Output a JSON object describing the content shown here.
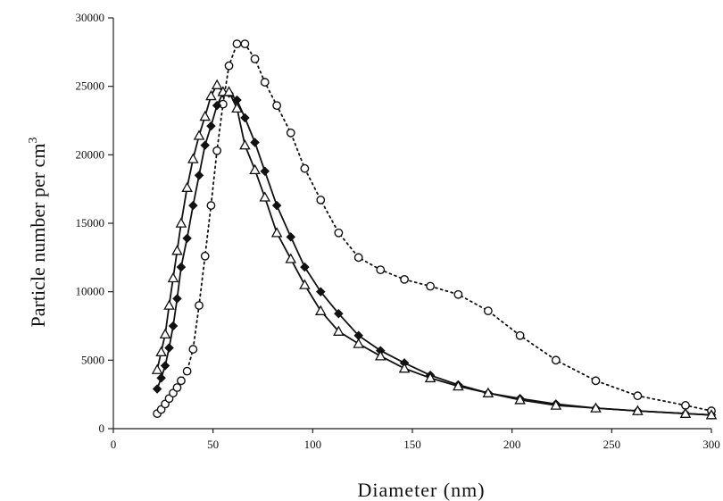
{
  "chart_data": {
    "type": "line",
    "title": "",
    "xlabel": "Diameter (nm)",
    "ylabel": "Particle number per cm",
    "ylabel_superscript": "3",
    "xlim": [
      0,
      300
    ],
    "ylim": [
      0,
      30000
    ],
    "xticks": [
      0,
      50,
      100,
      150,
      200,
      250,
      300
    ],
    "yticks": [
      0,
      5000,
      10000,
      15000,
      20000,
      25000,
      30000
    ],
    "xtick_labels": [
      "0",
      "50",
      "100",
      "150",
      "200",
      "250",
      "300"
    ],
    "ytick_labels": [
      "0",
      "5000",
      "10000",
      "15000",
      "20000",
      "25000",
      "30000"
    ],
    "grid": false,
    "legend": "none",
    "series": [
      {
        "marker": "open-circle",
        "line_style": "dotted",
        "color": "#111111",
        "x": [
          22,
          24,
          26,
          28,
          30,
          32,
          34,
          37,
          40,
          43,
          46,
          49,
          52,
          55,
          58,
          62,
          66,
          71,
          76,
          82,
          89,
          96,
          104,
          113,
          123,
          134,
          146,
          159,
          173,
          188,
          204,
          222,
          242,
          263,
          287,
          300
        ],
        "y": [
          1100,
          1400,
          1800,
          2200,
          2600,
          3000,
          3500,
          4200,
          5800,
          9000,
          12600,
          16300,
          20300,
          23700,
          26500,
          28100,
          28100,
          27000,
          25300,
          23600,
          21600,
          19000,
          16700,
          14300,
          12500,
          11600,
          10900,
          10400,
          9800,
          8600,
          6800,
          5000,
          3500,
          2400,
          1700,
          1300
        ]
      },
      {
        "marker": "filled-diamond",
        "line_style": "solid",
        "color": "#111111",
        "x": [
          22,
          24,
          26,
          28,
          30,
          32,
          34,
          37,
          40,
          43,
          46,
          49,
          52,
          55,
          58,
          62,
          66,
          71,
          76,
          82,
          89,
          96,
          104,
          113,
          123,
          134,
          146,
          159,
          173,
          188,
          204,
          222,
          242,
          263,
          287,
          300
        ],
        "y": [
          2900,
          3700,
          4600,
          5900,
          7500,
          9500,
          11800,
          13900,
          16300,
          18500,
          20700,
          22100,
          23600,
          24500,
          24500,
          24000,
          22700,
          20900,
          18800,
          16300,
          14000,
          11800,
          10000,
          8400,
          6800,
          5700,
          4800,
          3900,
          3200,
          2600,
          2200,
          1800,
          1500,
          1300,
          1100,
          1000
        ]
      },
      {
        "marker": "open-triangle",
        "line_style": "solid",
        "color": "#111111",
        "x": [
          22,
          24,
          26,
          28,
          30,
          32,
          34,
          37,
          40,
          43,
          46,
          49,
          52,
          55,
          58,
          62,
          66,
          71,
          76,
          82,
          89,
          96,
          104,
          113,
          123,
          134,
          146,
          159,
          173,
          188,
          204,
          222,
          242,
          263,
          287,
          300
        ],
        "y": [
          4300,
          5600,
          6900,
          9000,
          11000,
          13000,
          15000,
          17600,
          19700,
          21400,
          22800,
          24300,
          25100,
          24600,
          24600,
          23400,
          20700,
          18900,
          16900,
          14300,
          12400,
          10500,
          8600,
          7100,
          6200,
          5300,
          4400,
          3700,
          3100,
          2600,
          2100,
          1700,
          1500,
          1300,
          1100,
          1000
        ]
      }
    ]
  }
}
